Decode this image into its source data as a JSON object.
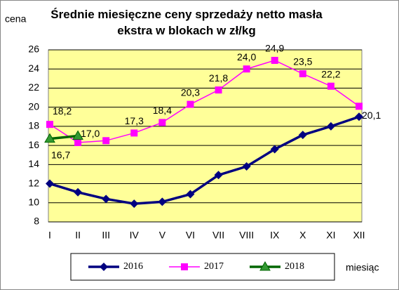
{
  "chart_data": {
    "type": "line",
    "title": "Średnie miesięczne ceny sprzedaży netto masła ekstra w blokach w zł/kg",
    "y_label": "cena",
    "x_label": "miesiąc",
    "categories": [
      "I",
      "II",
      "III",
      "IV",
      "V",
      "VI",
      "VII",
      "VIII",
      "IX",
      "X",
      "XI",
      "XII"
    ],
    "series": [
      {
        "name": "2016",
        "color": "#000080",
        "marker": "diamond",
        "values": [
          12.0,
          11.1,
          10.4,
          9.9,
          10.1,
          10.9,
          12.9,
          13.8,
          15.6,
          17.1,
          18.0,
          19.0
        ]
      },
      {
        "name": "2017",
        "color": "#FF00FF",
        "marker": "square",
        "values": [
          18.2,
          16.3,
          16.5,
          17.3,
          18.4,
          20.3,
          21.8,
          24.0,
          24.9,
          23.5,
          22.2,
          20.1
        ],
        "value_labels": [
          "18,2",
          null,
          null,
          "17,3",
          "18,4",
          "20,3",
          "21,8",
          "24,0",
          "24,9",
          "23,5",
          "22,2",
          "20,1"
        ]
      },
      {
        "name": "2018",
        "color": "#006600",
        "marker": "triangle",
        "values": [
          16.7,
          17.0,
          null,
          null,
          null,
          null,
          null,
          null,
          null,
          null,
          null,
          null
        ],
        "value_labels": [
          "16,7",
          "17,0",
          null,
          null,
          null,
          null,
          null,
          null,
          null,
          null,
          null,
          null
        ]
      }
    ],
    "ylim": [
      8,
      26
    ],
    "yticks": [
      8,
      10,
      12,
      14,
      16,
      18,
      20,
      22,
      24,
      26
    ],
    "grid": true,
    "legend": "bottom"
  }
}
